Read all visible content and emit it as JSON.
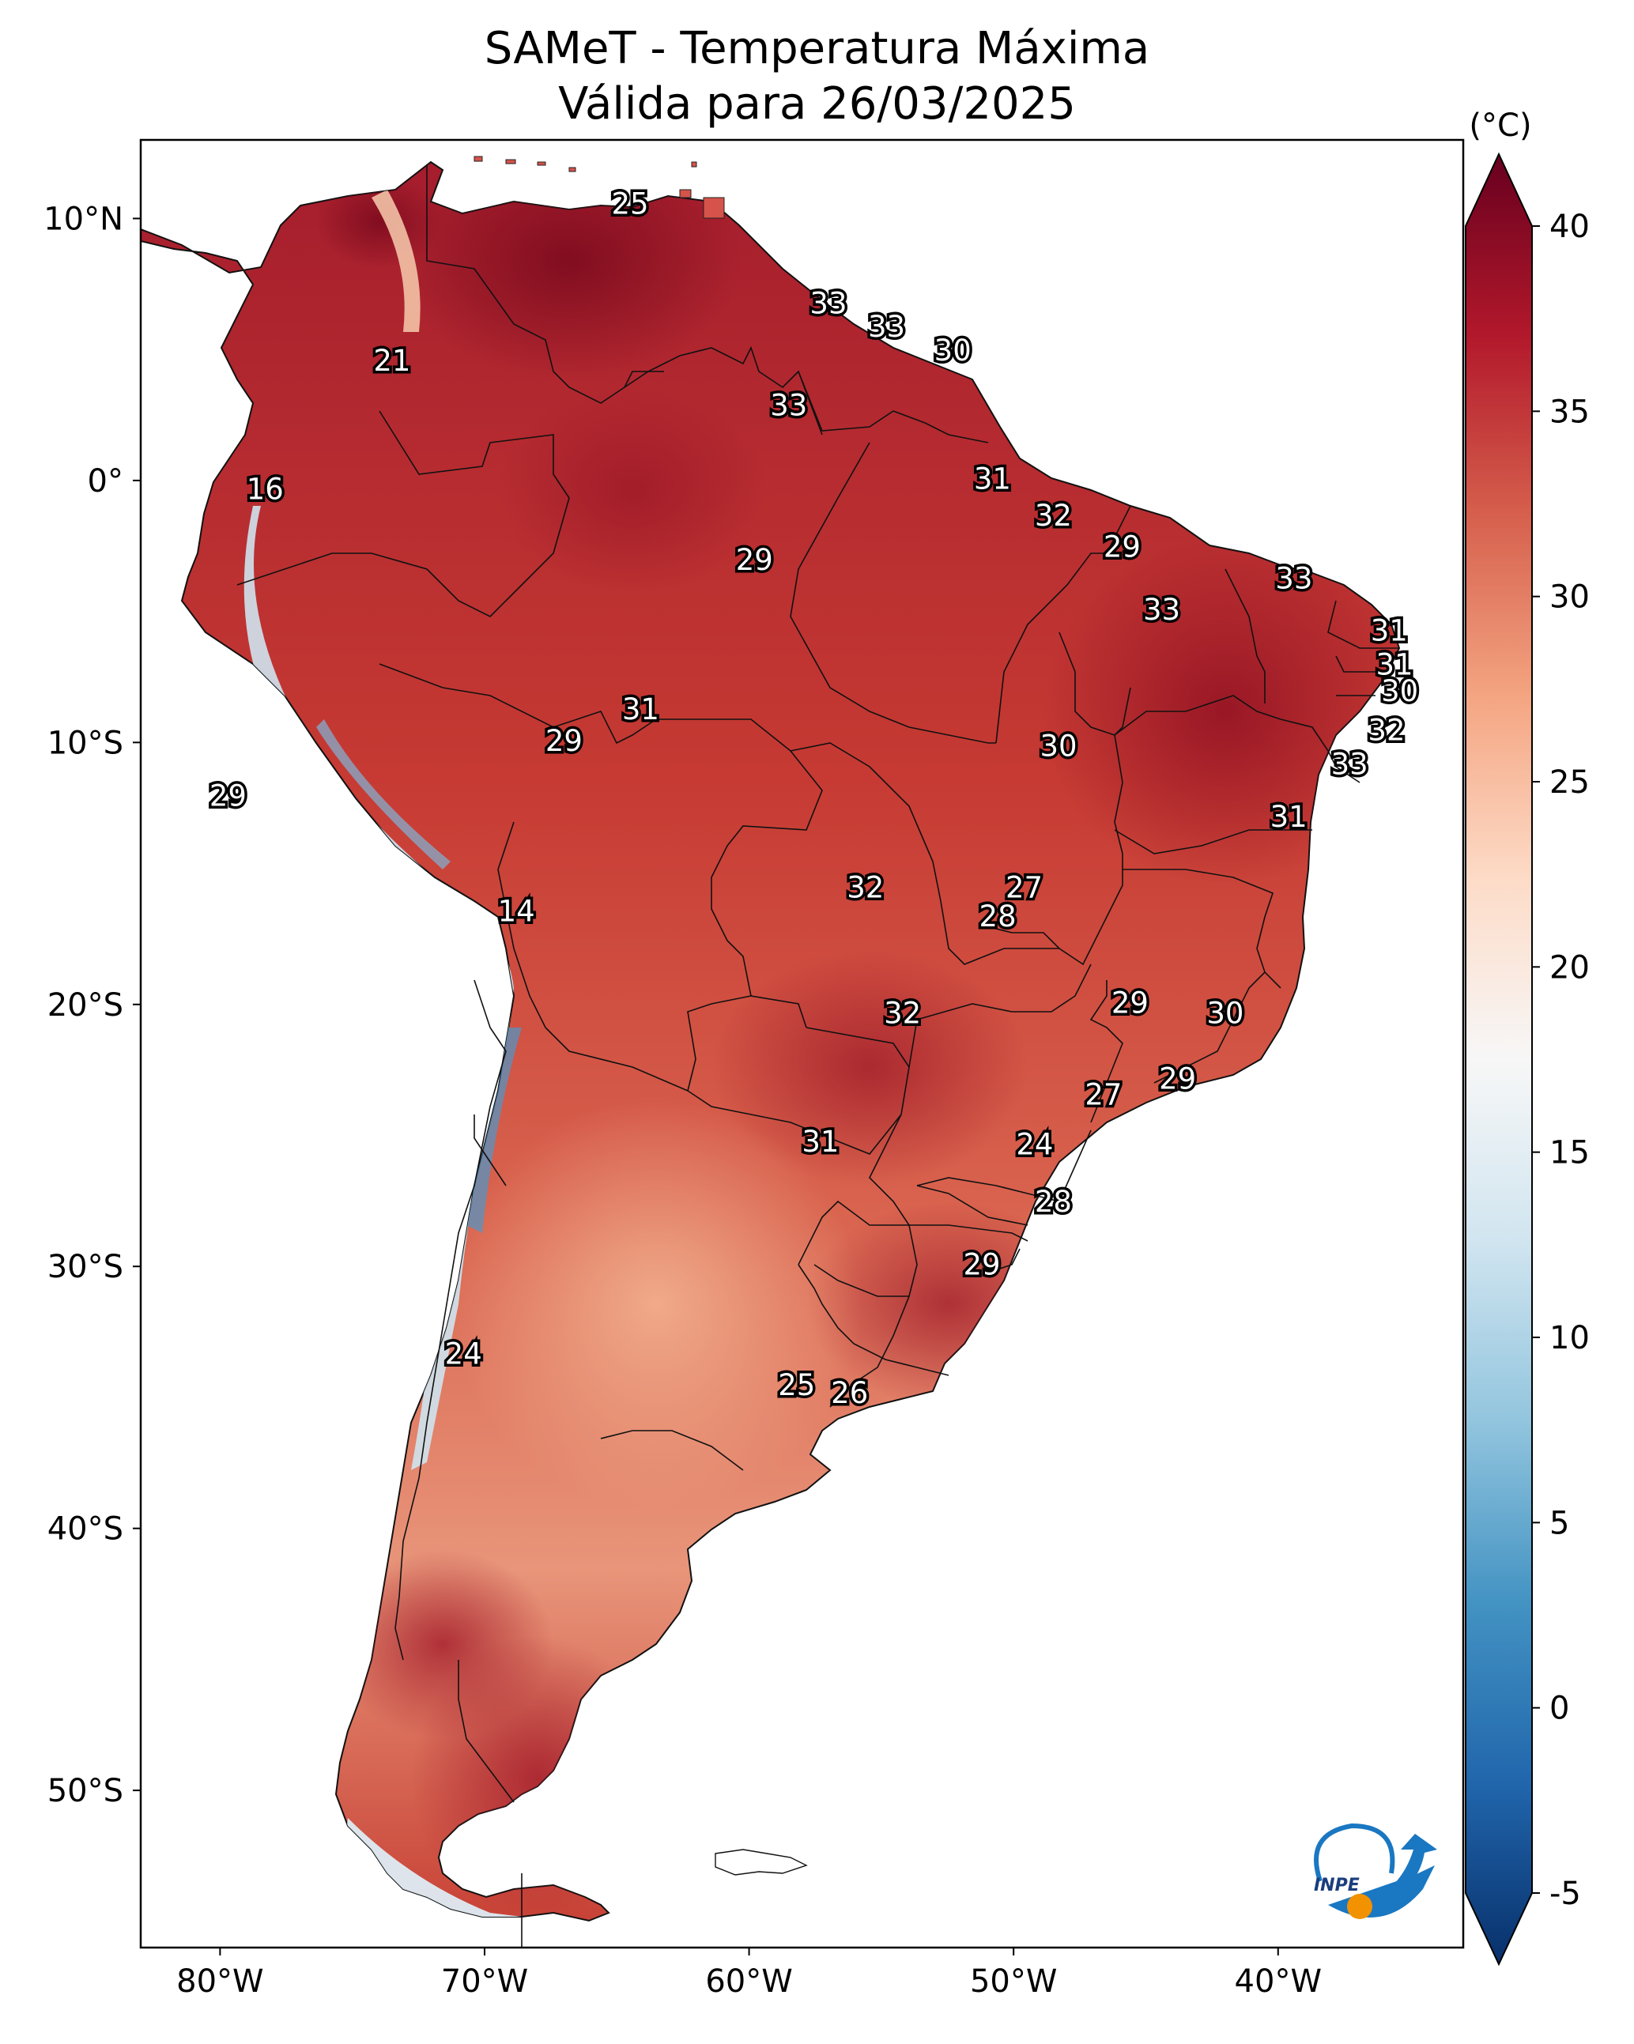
{
  "title": {
    "line1": "SAMeT - Temperatura Máxima",
    "line2": "Válida para 26/03/2025"
  },
  "extent": {
    "lon_min": -83,
    "lon_max": -33,
    "lat_min": -56,
    "lat_max": 13
  },
  "axes": {
    "lon_ticks": [
      {
        "lon": -80,
        "label": "80°W"
      },
      {
        "lon": -70,
        "label": "70°W"
      },
      {
        "lon": -60,
        "label": "60°W"
      },
      {
        "lon": -50,
        "label": "50°W"
      },
      {
        "lon": -40,
        "label": "40°W"
      }
    ],
    "lat_ticks": [
      {
        "lat": 10,
        "label": "10°N"
      },
      {
        "lat": 0,
        "label": "0°"
      },
      {
        "lat": -10,
        "label": "10°S"
      },
      {
        "lat": -20,
        "label": "20°S"
      },
      {
        "lat": -30,
        "label": "30°S"
      },
      {
        "lat": -40,
        "label": "40°S"
      },
      {
        "lat": -50,
        "label": "50°S"
      }
    ]
  },
  "colorbar": {
    "unit": "(°C)",
    "min": -5,
    "max": 40,
    "ticks": [
      "-5",
      "0",
      "5",
      "10",
      "15",
      "20",
      "25",
      "30",
      "35",
      "40"
    ],
    "colors": [
      "#08306b",
      "#2166ac",
      "#4393c3",
      "#92c5de",
      "#d1e5f0",
      "#f7f7f7",
      "#fddbc7",
      "#f4a582",
      "#d6604d",
      "#b2182b",
      "#67001f"
    ]
  },
  "logo": {
    "text": "INPE"
  },
  "station_values": [
    {
      "lon": -64.5,
      "lat": 10.5,
      "value": "25"
    },
    {
      "lon": -73.5,
      "lat": 4.5,
      "value": "21"
    },
    {
      "lon": -57.0,
      "lat": 6.7,
      "value": "33"
    },
    {
      "lon": -54.8,
      "lat": 5.8,
      "value": "33"
    },
    {
      "lon": -52.3,
      "lat": 4.9,
      "value": "30"
    },
    {
      "lon": -58.5,
      "lat": 2.8,
      "value": "33"
    },
    {
      "lon": -78.3,
      "lat": -0.4,
      "value": "16"
    },
    {
      "lon": -50.8,
      "lat": 0.0,
      "value": "31"
    },
    {
      "lon": -48.5,
      "lat": -1.4,
      "value": "32"
    },
    {
      "lon": -59.8,
      "lat": -3.1,
      "value": "29"
    },
    {
      "lon": -45.9,
      "lat": -2.6,
      "value": "29"
    },
    {
      "lon": -39.4,
      "lat": -3.8,
      "value": "33"
    },
    {
      "lon": -44.4,
      "lat": -5.0,
      "value": "33"
    },
    {
      "lon": -35.8,
      "lat": -5.8,
      "value": "31"
    },
    {
      "lon": -35.6,
      "lat": -7.1,
      "value": "31"
    },
    {
      "lon": -35.4,
      "lat": -8.1,
      "value": "30"
    },
    {
      "lon": -64.1,
      "lat": -8.8,
      "value": "31"
    },
    {
      "lon": -67.0,
      "lat": -10.0,
      "value": "29"
    },
    {
      "lon": -35.9,
      "lat": -9.6,
      "value": "32"
    },
    {
      "lon": -48.3,
      "lat": -10.2,
      "value": "30"
    },
    {
      "lon": -37.3,
      "lat": -10.9,
      "value": "33"
    },
    {
      "lon": -79.7,
      "lat": -12.1,
      "value": "29"
    },
    {
      "lon": -39.6,
      "lat": -12.9,
      "value": "31"
    },
    {
      "lon": -49.6,
      "lat": -15.6,
      "value": "27"
    },
    {
      "lon": -55.6,
      "lat": -15.6,
      "value": "32"
    },
    {
      "lon": -50.6,
      "lat": -16.7,
      "value": "28"
    },
    {
      "lon": -68.8,
      "lat": -16.5,
      "value": "14"
    },
    {
      "lon": -45.6,
      "lat": -20.0,
      "value": "29"
    },
    {
      "lon": -54.2,
      "lat": -20.4,
      "value": "32"
    },
    {
      "lon": -42.0,
      "lat": -20.4,
      "value": "30"
    },
    {
      "lon": -43.8,
      "lat": -22.9,
      "value": "29"
    },
    {
      "lon": -46.6,
      "lat": -23.5,
      "value": "27"
    },
    {
      "lon": -57.3,
      "lat": -25.3,
      "value": "31"
    },
    {
      "lon": -49.2,
      "lat": -25.4,
      "value": "24"
    },
    {
      "lon": -48.5,
      "lat": -27.6,
      "value": "28"
    },
    {
      "lon": -51.2,
      "lat": -30.0,
      "value": "29"
    },
    {
      "lon": -70.8,
      "lat": -33.4,
      "value": "24"
    },
    {
      "lon": -58.2,
      "lat": -34.6,
      "value": "25"
    },
    {
      "lon": -56.2,
      "lat": -34.9,
      "value": "26"
    }
  ]
}
